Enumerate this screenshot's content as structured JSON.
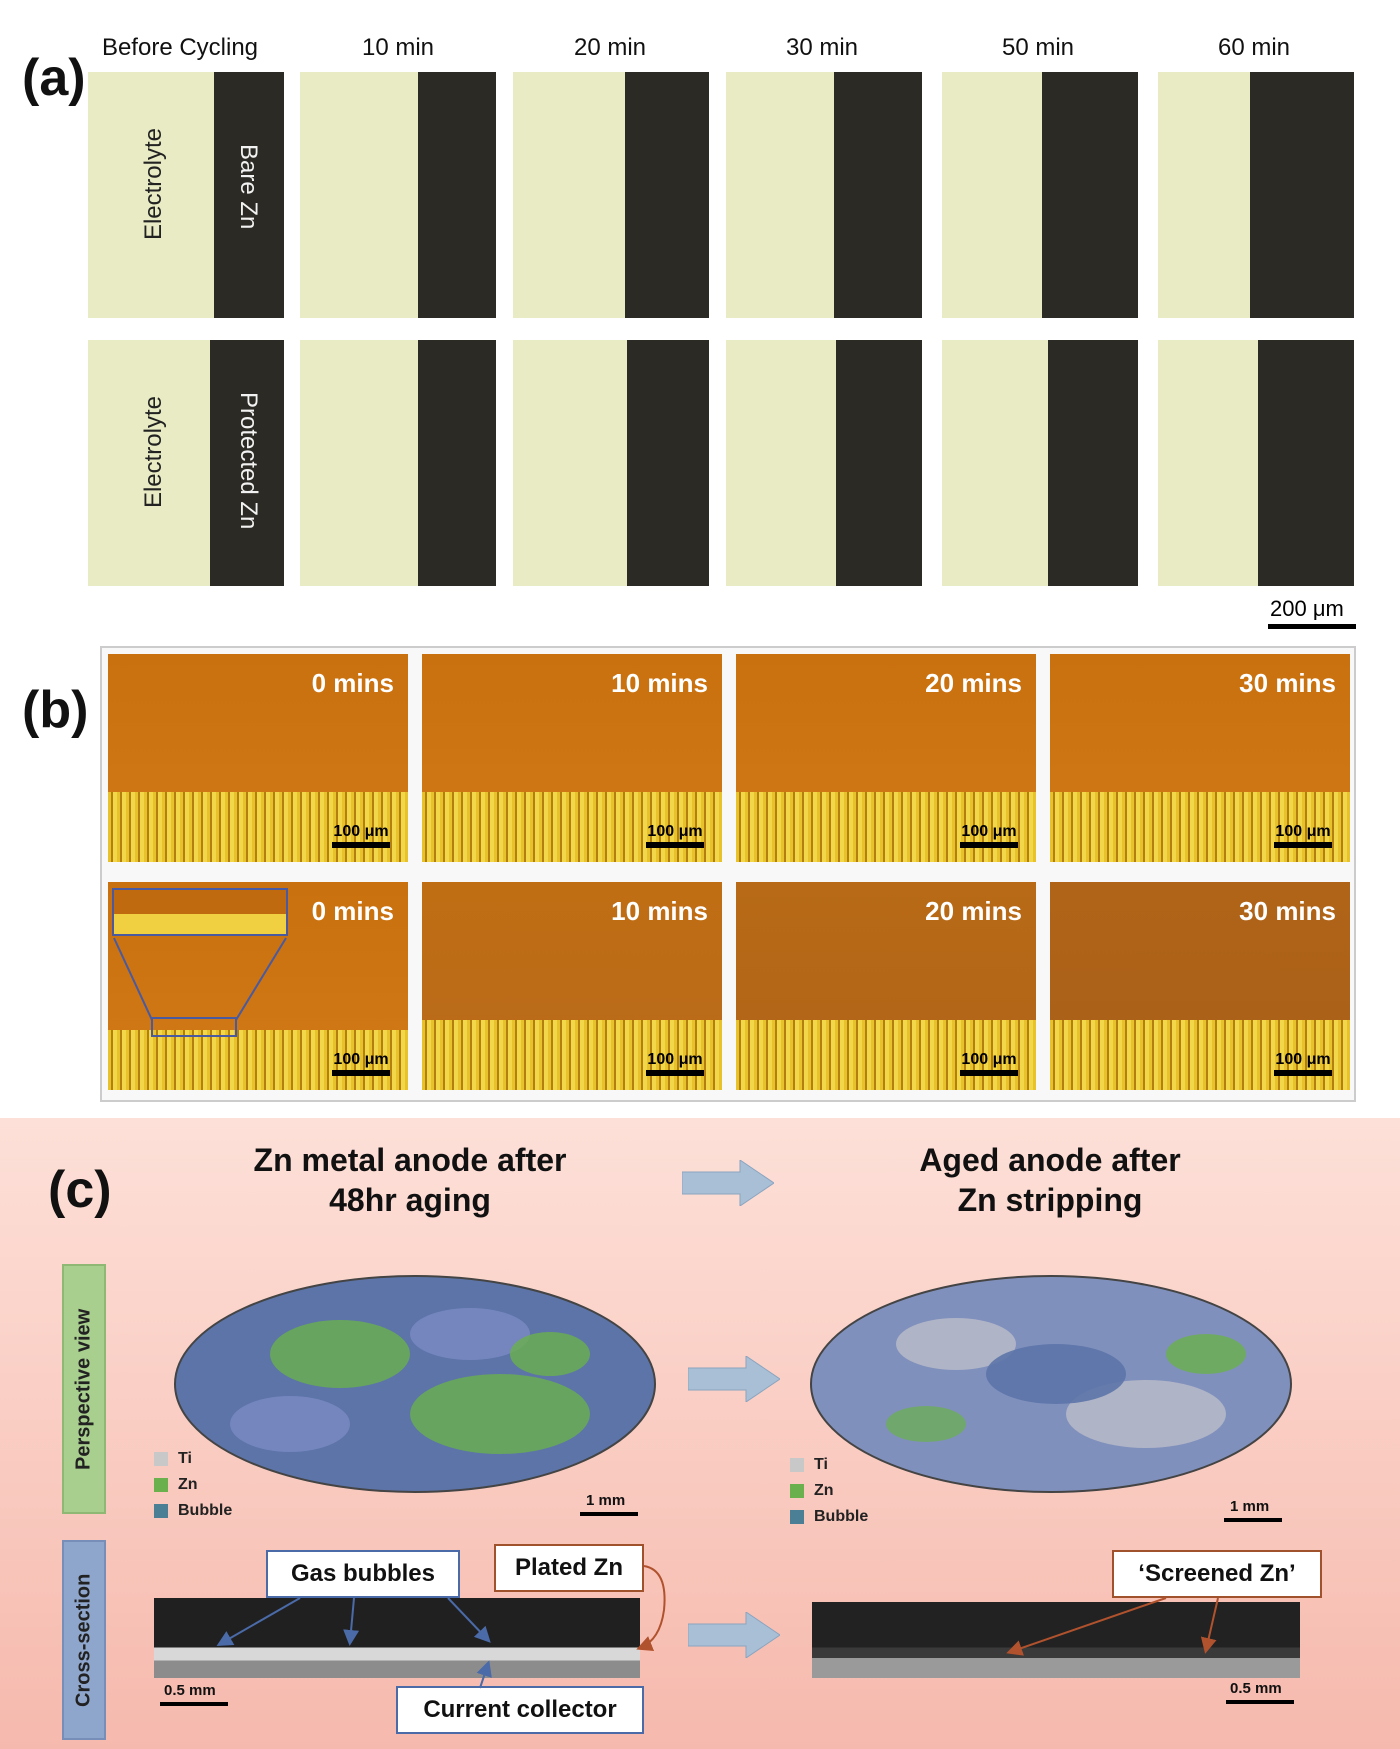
{
  "panel_a": {
    "label": "(a)",
    "times": [
      "Before Cycling",
      "10 min",
      "20 min",
      "30 min",
      "50 min",
      "60 min"
    ],
    "row1_left": "Electrolyte",
    "row1_right": "Bare Zn",
    "row2_left": "Electrolyte",
    "row2_right": "Protected Zn",
    "scale": "200 μm"
  },
  "panel_b": {
    "label": "(b)",
    "times": [
      "0 mins",
      "10 mins",
      "20 mins",
      "30 mins"
    ],
    "scale": "100 μm"
  },
  "panel_c": {
    "label": "(c)",
    "title_left_1": "Zn metal anode after",
    "title_left_2": "48hr aging",
    "title_right_1": "Aged anode after",
    "title_right_2": "Zn stripping",
    "perspective_tab": "Perspective view",
    "cross_tab": "Cross-section",
    "legend": [
      "Ti",
      "Zn",
      "Bubble"
    ],
    "legend_colors": [
      "#c8c8c8",
      "#6ab04c",
      "#4a7f95"
    ],
    "scale_mm": "1 mm",
    "scale_half_mm": "0.5 mm",
    "gas_bubbles": "Gas bubbles",
    "plated_zn": "Plated Zn",
    "current_collector": "Current collector",
    "screened_zn": "‘Screened Zn’"
  }
}
